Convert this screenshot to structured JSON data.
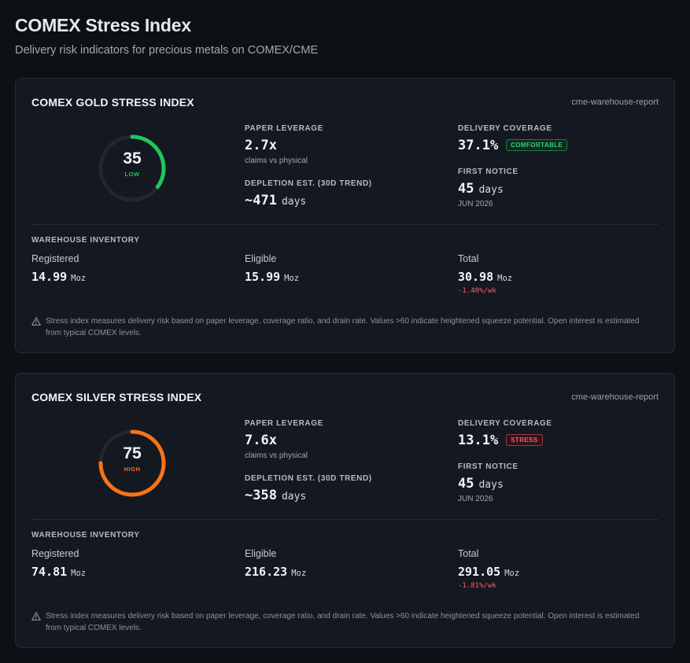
{
  "header": {
    "title": "COMEX Stress Index",
    "subtitle": "Delivery risk indicators for precious metals on COMEX/CME"
  },
  "cards": [
    {
      "title": "COMEX GOLD STRESS INDEX",
      "source": "cme-warehouse-report",
      "gauge": {
        "score": "35",
        "level": "LOW",
        "fraction": 0.35,
        "color": "#22c55e"
      },
      "paper_leverage": {
        "label": "PAPER LEVERAGE",
        "value": "2.7x",
        "sub": "claims vs physical"
      },
      "depletion": {
        "label": "DEPLETION EST. (30D TREND)",
        "value": "~471",
        "unit": "days"
      },
      "delivery_coverage": {
        "label": "DELIVERY COVERAGE",
        "value": "37.1%",
        "badge": "COMFORTABLE",
        "badge_status": "good"
      },
      "first_notice": {
        "label": "FIRST NOTICE",
        "value": "45",
        "unit": "days",
        "sub": "JUN 2026"
      },
      "warehouse": {
        "title": "WAREHOUSE INVENTORY",
        "registered": {
          "label": "Registered",
          "value": "14.99",
          "unit": "Moz"
        },
        "eligible": {
          "label": "Eligible",
          "value": "15.99",
          "unit": "Moz"
        },
        "total": {
          "label": "Total",
          "value": "30.98",
          "unit": "Moz",
          "change": "-1.40%/wk"
        }
      },
      "note": "Stress index measures delivery risk based on paper leverage, coverage ratio, and drain rate. Values >60 indicate heightened squeeze potential. Open interest is estimated from typical COMEX levels."
    },
    {
      "title": "COMEX SILVER STRESS INDEX",
      "source": "cme-warehouse-report",
      "gauge": {
        "score": "75",
        "level": "HIGH",
        "fraction": 0.75,
        "color": "#f97316"
      },
      "paper_leverage": {
        "label": "PAPER LEVERAGE",
        "value": "7.6x",
        "sub": "claims vs physical"
      },
      "depletion": {
        "label": "DEPLETION EST. (30D TREND)",
        "value": "~358",
        "unit": "days"
      },
      "delivery_coverage": {
        "label": "DELIVERY COVERAGE",
        "value": "13.1%",
        "badge": "STRESS",
        "badge_status": "bad"
      },
      "first_notice": {
        "label": "FIRST NOTICE",
        "value": "45",
        "unit": "days",
        "sub": "JUN 2026"
      },
      "warehouse": {
        "title": "WAREHOUSE INVENTORY",
        "registered": {
          "label": "Registered",
          "value": "74.81",
          "unit": "Moz"
        },
        "eligible": {
          "label": "Eligible",
          "value": "216.23",
          "unit": "Moz"
        },
        "total": {
          "label": "Total",
          "value": "291.05",
          "unit": "Moz",
          "change": "-1.81%/wk"
        }
      },
      "note": "Stress index measures delivery risk based on paper leverage, coverage ratio, and drain rate. Values >60 indicate heightened squeeze potential. Open interest is estimated from typical COMEX levels."
    }
  ]
}
